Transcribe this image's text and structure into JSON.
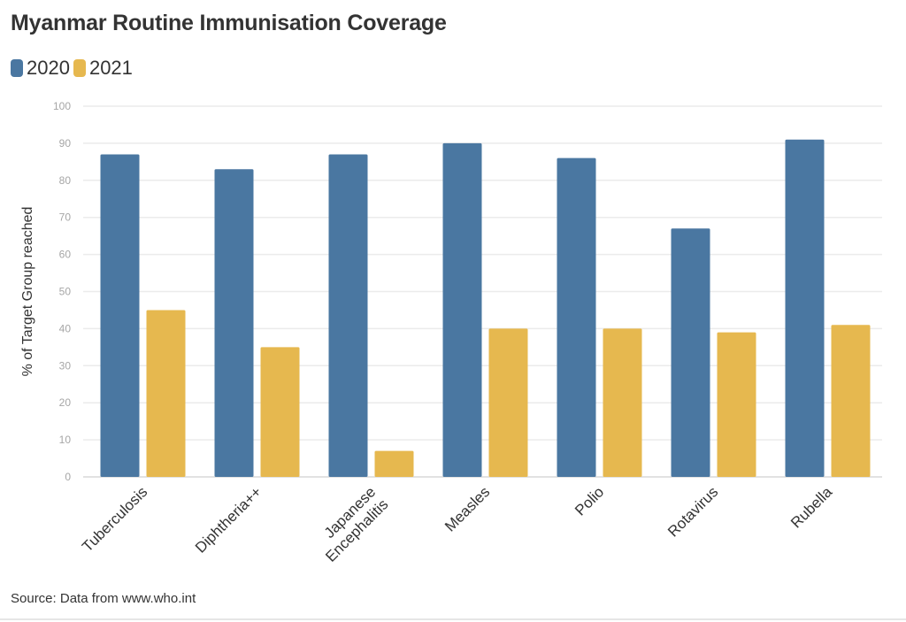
{
  "chart_data": {
    "type": "bar",
    "title": "Myanmar Routine Immunisation Coverage",
    "xlabel": "",
    "ylabel": "% of Target Group reached",
    "categories": [
      "Tuberculosis",
      "Diphtheria++",
      "Japanese Encephalitis",
      "Measles",
      "Polio",
      "Rotavirus",
      "Rubella"
    ],
    "series": [
      {
        "name": "2020",
        "color": "#4a77a1",
        "values": [
          87,
          83,
          87,
          90,
          86,
          67,
          91
        ]
      },
      {
        "name": "2021",
        "color": "#e6b84f",
        "values": [
          45,
          35,
          7,
          40,
          40,
          39,
          41
        ]
      }
    ],
    "ylim": [
      0,
      100
    ],
    "yticks": [
      0,
      10,
      20,
      30,
      40,
      50,
      60,
      70,
      80,
      90,
      100
    ],
    "grid": true,
    "legend_position": "top-left",
    "source": "Source: Data from www.who.int"
  }
}
